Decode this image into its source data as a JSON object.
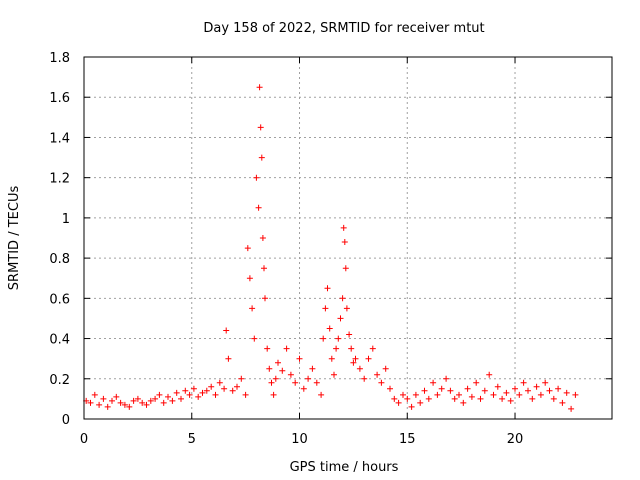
{
  "chart_data": {
    "type": "scatter",
    "title": "Day 158 of 2022, SRMTID for receiver mtut",
    "xlabel": "GPS time / hours",
    "ylabel": "SRMTID / TECUs",
    "xlim": [
      0,
      24.5
    ],
    "ylim": [
      0,
      1.8
    ],
    "grid": true,
    "marker": "+",
    "series_color": "#ff0000",
    "xticks": [
      0,
      5,
      10,
      15,
      20
    ],
    "xtick_labels": [
      "0",
      "5",
      "10",
      "15",
      "20"
    ],
    "yticks": [
      0,
      0.2,
      0.4,
      0.6,
      0.8,
      1.0,
      1.2,
      1.4,
      1.6,
      1.8
    ],
    "ytick_labels": [
      "0",
      "0.2",
      "0.4",
      "0.6",
      "0.8",
      "1",
      "1.2",
      "1.4",
      "1.6",
      "1.8"
    ],
    "series": [
      {
        "name": "SRMTID",
        "x": [
          0.1,
          0.3,
          0.5,
          0.7,
          0.9,
          1.1,
          1.3,
          1.5,
          1.7,
          1.9,
          2.1,
          2.3,
          2.5,
          2.7,
          2.9,
          3.1,
          3.3,
          3.5,
          3.7,
          3.9,
          4.1,
          4.3,
          4.5,
          4.7,
          4.9,
          5.1,
          5.3,
          5.5,
          5.7,
          5.9,
          6.1,
          6.3,
          6.5,
          6.6,
          6.7,
          6.9,
          7.1,
          7.3,
          7.5,
          7.6,
          7.7,
          7.8,
          7.9,
          8.0,
          8.1,
          8.15,
          8.2,
          8.25,
          8.3,
          8.35,
          8.4,
          8.5,
          8.6,
          8.7,
          8.8,
          8.9,
          9.0,
          9.2,
          9.4,
          9.6,
          9.8,
          10.0,
          10.2,
          10.4,
          10.6,
          10.8,
          11.0,
          11.1,
          11.2,
          11.3,
          11.4,
          11.5,
          11.6,
          11.7,
          11.8,
          11.9,
          12.0,
          12.05,
          12.1,
          12.15,
          12.2,
          12.3,
          12.4,
          12.5,
          12.6,
          12.8,
          13.0,
          13.2,
          13.4,
          13.6,
          13.8,
          14.0,
          14.2,
          14.4,
          14.6,
          14.8,
          15.0,
          15.2,
          15.4,
          15.6,
          15.8,
          16.0,
          16.2,
          16.4,
          16.6,
          16.8,
          17.0,
          17.2,
          17.4,
          17.6,
          17.8,
          18.0,
          18.2,
          18.4,
          18.6,
          18.8,
          19.0,
          19.2,
          19.4,
          19.6,
          19.8,
          20.0,
          20.2,
          20.4,
          20.6,
          20.8,
          21.0,
          21.2,
          21.4,
          21.6,
          21.8,
          22.0,
          22.2,
          22.4,
          22.6,
          22.8
        ],
        "y": [
          0.09,
          0.08,
          0.12,
          0.07,
          0.1,
          0.06,
          0.09,
          0.11,
          0.08,
          0.07,
          0.06,
          0.09,
          0.1,
          0.08,
          0.07,
          0.09,
          0.1,
          0.12,
          0.08,
          0.11,
          0.09,
          0.13,
          0.1,
          0.14,
          0.12,
          0.15,
          0.11,
          0.13,
          0.14,
          0.16,
          0.12,
          0.18,
          0.15,
          0.44,
          0.3,
          0.14,
          0.16,
          0.2,
          0.12,
          0.85,
          0.7,
          0.55,
          0.4,
          1.2,
          1.05,
          1.65,
          1.45,
          1.3,
          0.9,
          0.75,
          0.6,
          0.35,
          0.25,
          0.18,
          0.12,
          0.2,
          0.28,
          0.24,
          0.35,
          0.22,
          0.18,
          0.3,
          0.15,
          0.2,
          0.25,
          0.18,
          0.12,
          0.4,
          0.55,
          0.65,
          0.45,
          0.3,
          0.22,
          0.35,
          0.4,
          0.5,
          0.6,
          0.95,
          0.88,
          0.75,
          0.55,
          0.42,
          0.35,
          0.28,
          0.3,
          0.25,
          0.2,
          0.3,
          0.35,
          0.22,
          0.18,
          0.25,
          0.15,
          0.1,
          0.08,
          0.12,
          0.1,
          0.06,
          0.12,
          0.08,
          0.14,
          0.1,
          0.18,
          0.12,
          0.15,
          0.2,
          0.14,
          0.1,
          0.12,
          0.08,
          0.15,
          0.11,
          0.18,
          0.1,
          0.14,
          0.22,
          0.12,
          0.16,
          0.1,
          0.13,
          0.09,
          0.15,
          0.12,
          0.18,
          0.14,
          0.1,
          0.16,
          0.12,
          0.18,
          0.14,
          0.1,
          0.15,
          0.08,
          0.13,
          0.05,
          0.12
        ]
      }
    ]
  }
}
